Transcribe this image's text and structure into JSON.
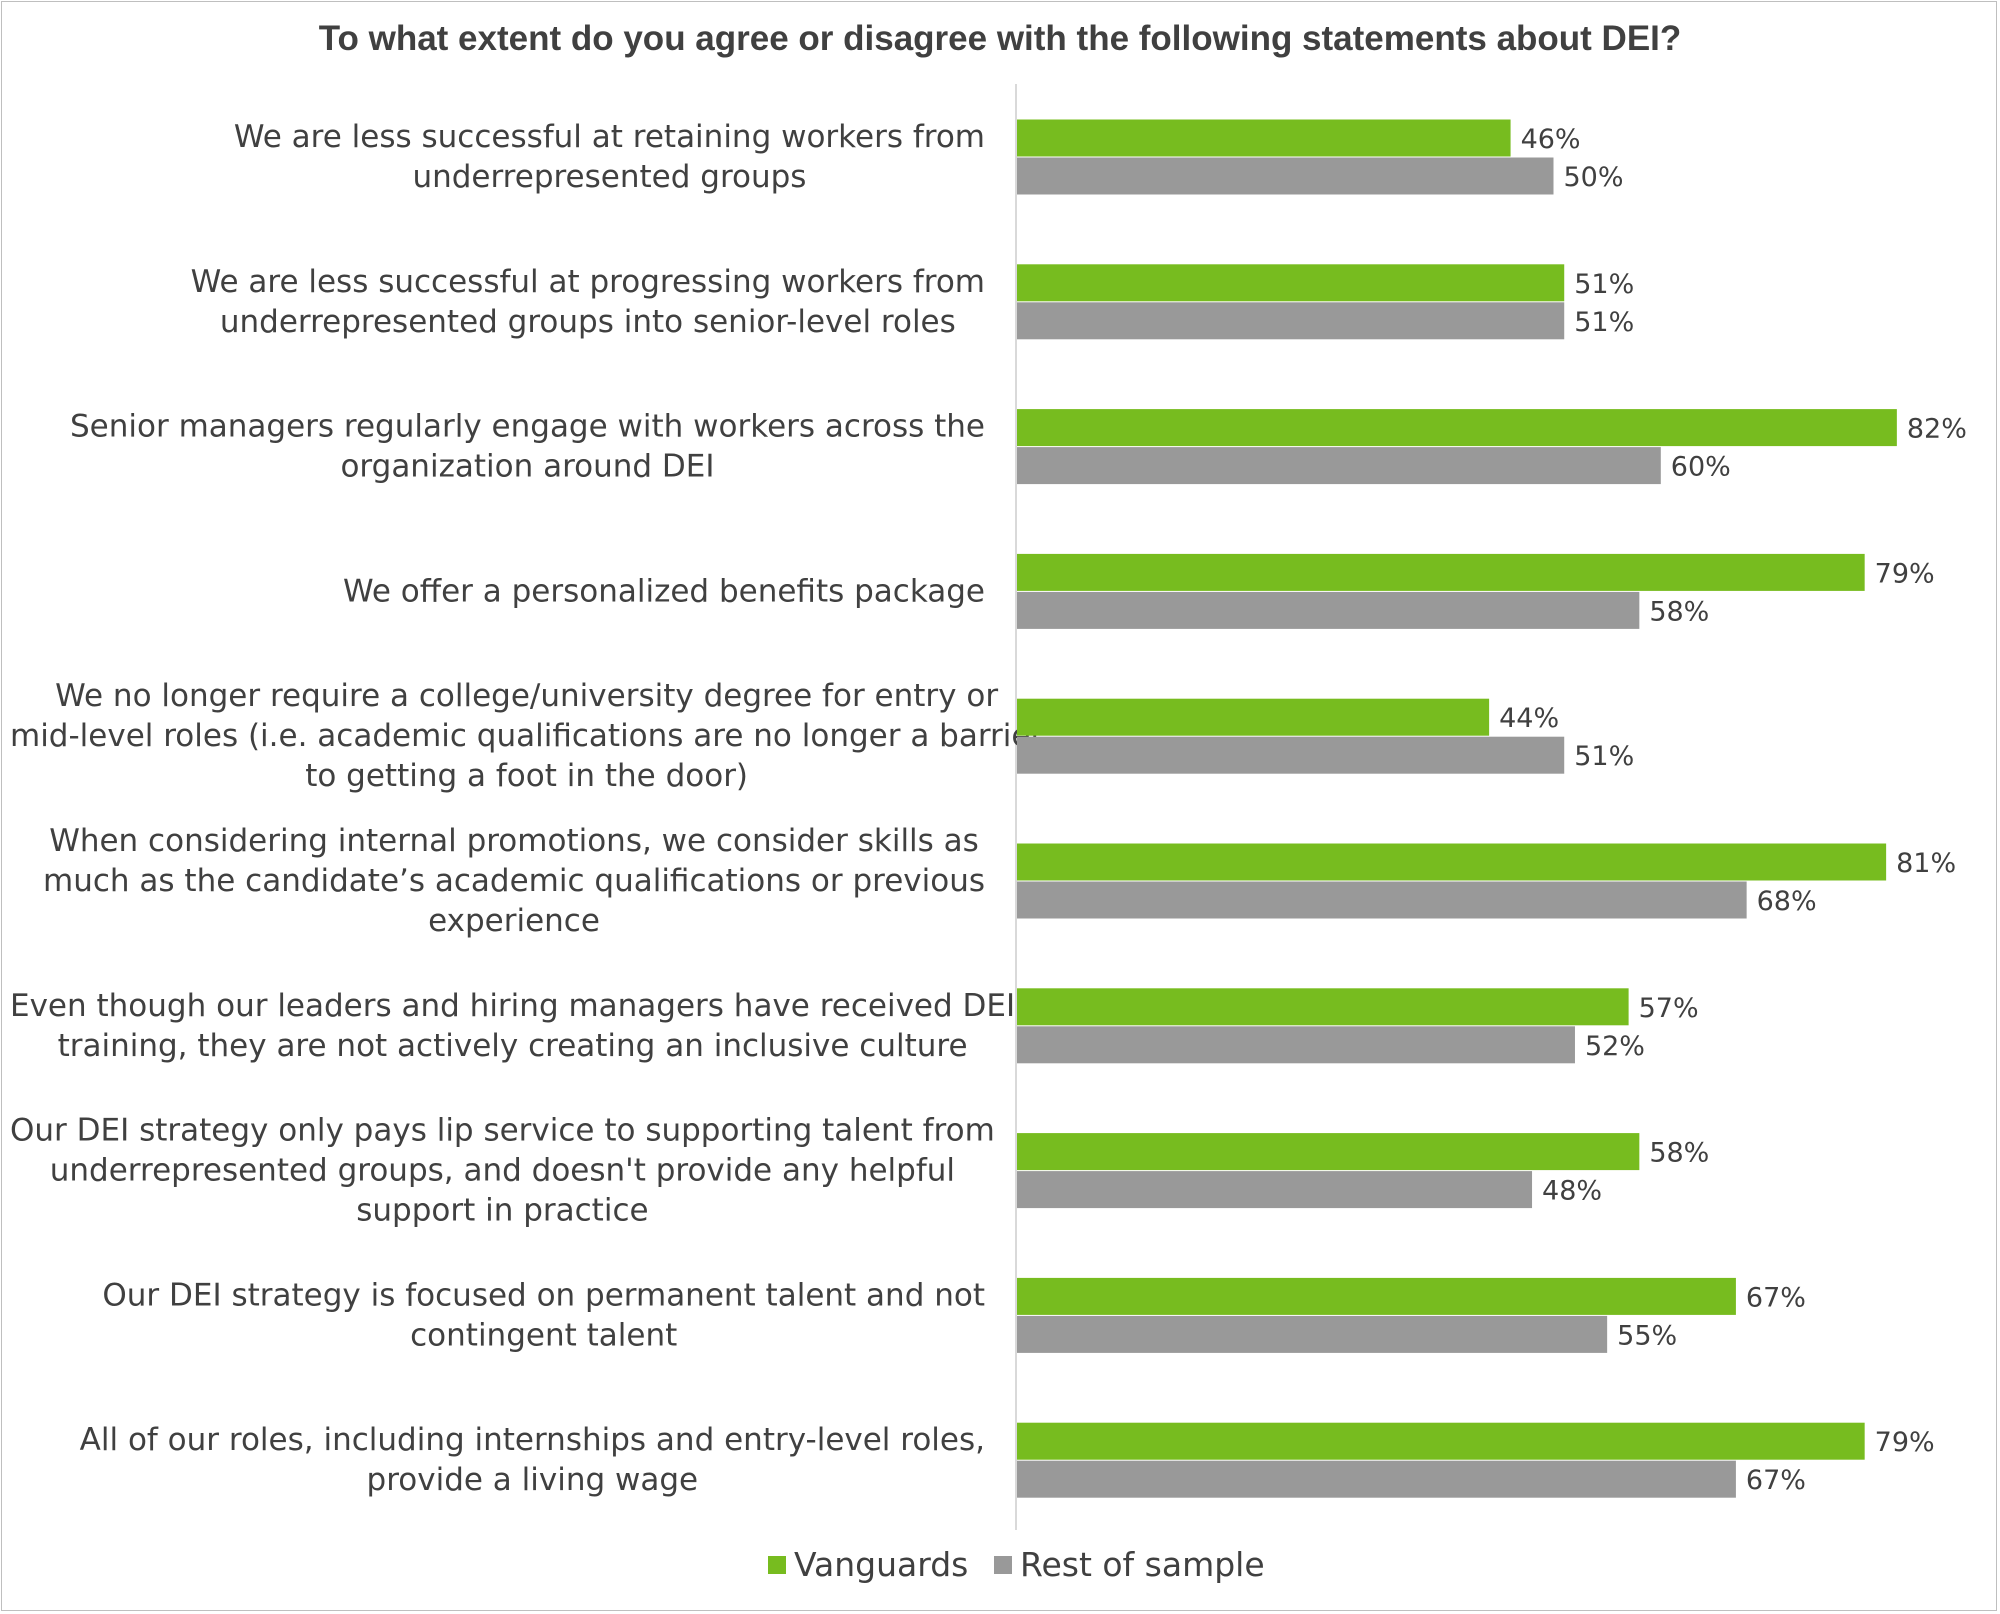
{
  "chart_data": {
    "type": "bar",
    "orientation": "horizontal",
    "title": "To what extent do you agree or disagree with the following statements about DEI?",
    "categories": [
      [
        "We are less successful at retaining workers from",
        "underrepresented groups"
      ],
      [
        "We are less successful at progressing workers from",
        "underrepresented groups into senior-level roles"
      ],
      [
        "Senior managers regularly engage with workers across the",
        "organization around DEI"
      ],
      [
        "We offer a personalized  benefits package"
      ],
      [
        "We no longer require a college/university degree for entry or",
        "mid-level roles (i.e. academic qualifications are no longer a barrier",
        "to getting a foot in the door)"
      ],
      [
        "When considering internal promotions, we consider skills as",
        "much as the candidate’s academic qualifications or previous",
        "experience"
      ],
      [
        "Even though our leaders and hiring managers have received DEI",
        "training, they are not actively creating an inclusive culture"
      ],
      [
        "Our DEI strategy only pays lip service to supporting talent from",
        "underrepresented groups, and doesn't provide any helpful",
        "support in practice"
      ],
      [
        "Our DEI strategy is focused on permanent talent and not",
        "contingent talent"
      ],
      [
        "All of our roles, including internships and entry-level roles,",
        "provide a living wage"
      ]
    ],
    "series": [
      {
        "name": "Vanguards",
        "color": "#77bc1f",
        "values": [
          46,
          51,
          82,
          79,
          44,
          81,
          57,
          58,
          67,
          79
        ]
      },
      {
        "name": "Rest of sample",
        "color": "#999999",
        "values": [
          50,
          51,
          60,
          58,
          51,
          68,
          52,
          48,
          55,
          67
        ]
      }
    ],
    "value_suffix": "%",
    "xlim": [
      0,
      100
    ],
    "grid": false,
    "legend_position": "bottom"
  }
}
